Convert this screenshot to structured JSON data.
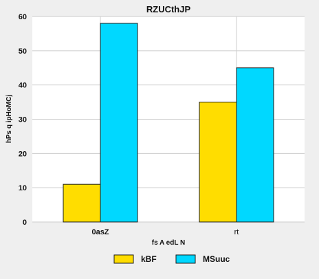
{
  "chart_data": {
    "type": "bar",
    "title": "RZUCthJP",
    "xlabel": "fs A  edL N",
    "ylabel": "hPs q ipHoMCj",
    "categories": [
      "0asZ",
      "rt"
    ],
    "category_bold": [
      true,
      false
    ],
    "series": [
      {
        "name": "kBF",
        "values": [
          11,
          35
        ],
        "color": "#ffdd00"
      },
      {
        "name": "MSuuc",
        "values": [
          58,
          45
        ],
        "color": "#00d8ff"
      }
    ],
    "ylim": [
      0,
      60
    ],
    "yticks": [
      0,
      10,
      20,
      30,
      40,
      50,
      60
    ],
    "grid": true,
    "legend_position": "bottom"
  }
}
